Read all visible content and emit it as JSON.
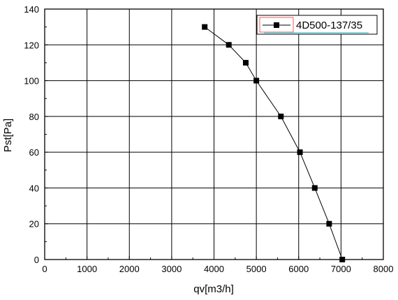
{
  "chart_data": {
    "type": "line",
    "title": "",
    "xlabel": "qv[m3/h]",
    "ylabel": "Pst[Pa]",
    "xlim": [
      0,
      8000
    ],
    "ylim": [
      0,
      140
    ],
    "xticks": [
      0,
      1000,
      2000,
      3000,
      4000,
      5000,
      6000,
      7000,
      8000
    ],
    "yticks": [
      0,
      20,
      40,
      60,
      80,
      100,
      120,
      140
    ],
    "grid": true,
    "legend_position": "top-right",
    "series": [
      {
        "name": "4D500-137/35",
        "color": "#000000",
        "marker": "square",
        "x": [
          3780,
          4350,
          4750,
          5000,
          5580,
          6030,
          6380,
          6720,
          7030
        ],
        "y": [
          130,
          120,
          110,
          100,
          80,
          60,
          40,
          20,
          0
        ]
      }
    ]
  }
}
